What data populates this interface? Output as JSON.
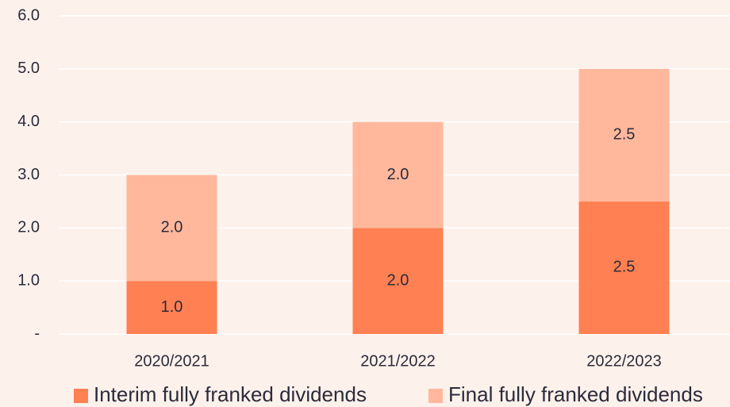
{
  "chart_data": {
    "type": "stacked_bar",
    "categories": [
      "2020/2021",
      "2021/2022",
      "2022/2023"
    ],
    "series": [
      {
        "name": "Interim fully franked dividends",
        "color": "#ff8052",
        "values": [
          1.0,
          2.0,
          2.5
        ],
        "value_labels": [
          "1.0",
          "2.0",
          "2.5"
        ]
      },
      {
        "name": "Final fully franked dividends",
        "color": "#ffb89c",
        "values": [
          2.0,
          2.0,
          2.5
        ],
        "value_labels": [
          "2.0",
          "2.0",
          "2.5"
        ]
      }
    ],
    "ylim": [
      0,
      6
    ],
    "yticks": [
      {
        "value": 0,
        "label": "-"
      },
      {
        "value": 1,
        "label": "1.0"
      },
      {
        "value": 2,
        "label": "2.0"
      },
      {
        "value": 3,
        "label": "3.0"
      },
      {
        "value": 4,
        "label": "4.0"
      },
      {
        "value": 5,
        "label": "5.0"
      },
      {
        "value": 6,
        "label": "6.0"
      }
    ],
    "grid": true,
    "legend": "bottom"
  }
}
